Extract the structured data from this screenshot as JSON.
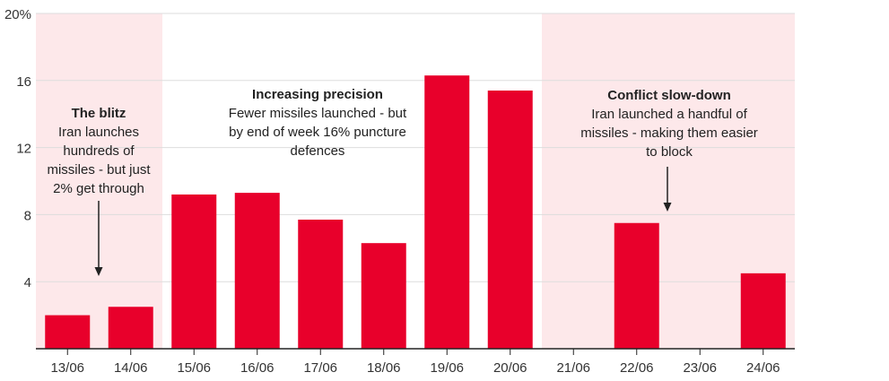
{
  "chart_data": {
    "type": "bar",
    "categories": [
      "13/06",
      "14/06",
      "15/06",
      "16/06",
      "17/06",
      "18/06",
      "19/06",
      "20/06",
      "21/06",
      "22/06",
      "23/06",
      "24/06"
    ],
    "values": [
      2.0,
      2.5,
      9.2,
      9.3,
      7.7,
      6.3,
      16.3,
      15.4,
      0,
      7.5,
      0,
      4.5
    ],
    "y_ticks": [
      "20%",
      "16",
      "12",
      "8",
      "4"
    ],
    "ylim": [
      0,
      20
    ],
    "title": "",
    "xlabel": "",
    "ylabel": "",
    "grid": true,
    "shaded_periods": [
      {
        "start": "13/06",
        "end": "14/06"
      },
      {
        "start": "21/06",
        "end": "24/06"
      }
    ],
    "annotations": [
      {
        "heading": "The blitz",
        "text": "Iran launches hundreds of missiles - but just 2% get through",
        "arrow_to": "14/06"
      },
      {
        "heading": "Increasing precision",
        "text": "Fewer missiles launched - but by end of week 16% puncture defences",
        "arrow_to": null
      },
      {
        "heading": "Conflict slow-down",
        "text": "Iran launched a handful of missiles - making them easier to block",
        "arrow_to": "22/06"
      }
    ]
  },
  "colors": {
    "bar": "#e8002b",
    "shade": "#fde8ea",
    "grid": "#dddddd",
    "axis": "#222222",
    "text": "#333333"
  }
}
